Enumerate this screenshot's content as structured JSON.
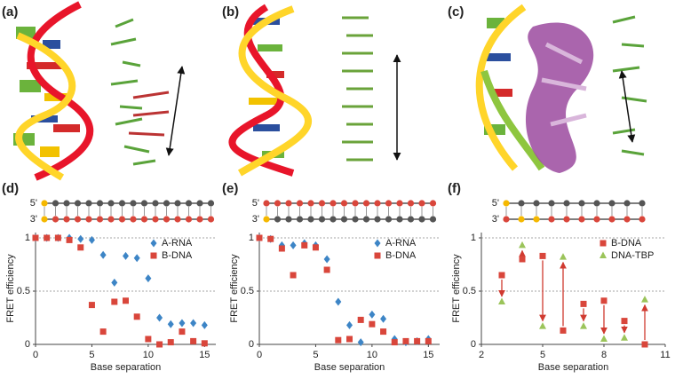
{
  "panels": [
    "(a)",
    "(b)",
    "(c)",
    "(d)",
    "(e)",
    "(f)"
  ],
  "chart_data": [
    {
      "type": "scatter",
      "x_label": "Base separation",
      "y_label": "FRET efficiency",
      "strand_labels": [
        "5'",
        "3'"
      ],
      "xlim": [
        0,
        16
      ],
      "xticks": [
        0,
        5,
        10,
        15
      ],
      "ylim": [
        0,
        1.05
      ],
      "yticks": [
        0,
        0.5,
        1
      ],
      "grid": true,
      "legend": "upper right",
      "x": [
        0,
        1,
        2,
        3,
        4,
        5,
        6,
        7,
        8,
        9,
        10,
        11,
        12,
        13,
        14,
        15
      ],
      "series": [
        {
          "name": "A-RNA",
          "color": "#3d85c6",
          "marker": "diamond",
          "values": [
            1,
            1,
            1,
            1,
            0.99,
            0.98,
            0.84,
            0.58,
            0.83,
            0.81,
            0.62,
            0.25,
            0.19,
            0.2,
            0.2,
            0.18
          ]
        },
        {
          "name": "B-DNA",
          "color": "#d9463b",
          "marker": "square",
          "values": [
            1,
            1,
            1,
            0.98,
            0.91,
            0.37,
            0.12,
            0.4,
            0.41,
            0.26,
            0.05,
            0,
            0.02,
            0.12,
            0.03,
            0.01
          ]
        }
      ]
    },
    {
      "type": "scatter",
      "x_label": "Base separation",
      "y_label": "FRET efficiency",
      "strand_labels": [
        "5'",
        "3'"
      ],
      "xlim": [
        0,
        16
      ],
      "xticks": [
        0,
        5,
        10,
        15
      ],
      "ylim": [
        0,
        1.05
      ],
      "yticks": [
        0,
        0.5,
        1
      ],
      "grid": true,
      "legend": "upper right",
      "x": [
        0,
        1,
        2,
        3,
        4,
        5,
        6,
        7,
        8,
        9,
        10,
        11,
        12,
        13,
        14,
        15
      ],
      "series": [
        {
          "name": "A-RNA",
          "color": "#3d85c6",
          "marker": "diamond",
          "values": [
            1,
            0.99,
            0.93,
            0.93,
            0.95,
            0.93,
            0.8,
            0.4,
            0.18,
            0.02,
            0.28,
            0.24,
            0.05,
            0.02,
            0.03,
            0.05
          ]
        },
        {
          "name": "B-DNA",
          "color": "#d9463b",
          "marker": "square",
          "values": [
            1,
            0.99,
            0.9,
            0.65,
            0.93,
            0.91,
            0.7,
            0.04,
            0.05,
            0.23,
            0.19,
            0.12,
            0.02,
            0.03,
            0.03,
            0.03
          ]
        }
      ]
    },
    {
      "type": "scatter",
      "x_label": "Base separation",
      "y_label": "FRET efficiency",
      "strand_labels": [
        "5'",
        "3'"
      ],
      "xlim": [
        2,
        11
      ],
      "xticks": [
        2,
        5,
        8,
        11
      ],
      "ylim": [
        0,
        1.05
      ],
      "yticks": [
        0,
        0.5,
        1
      ],
      "grid": true,
      "legend": "upper right",
      "arrows": true,
      "x": [
        3,
        4,
        5,
        6,
        7,
        8,
        9,
        10
      ],
      "series": [
        {
          "name": "B-DNA",
          "color": "#d9463b",
          "marker": "square",
          "values": [
            0.65,
            0.8,
            0.83,
            0.13,
            0.38,
            0.41,
            0.22,
            0
          ]
        },
        {
          "name": "DNA-TBP",
          "color": "#9bc45a",
          "marker": "triangle",
          "values": [
            0.4,
            0.93,
            0.17,
            0.82,
            0.17,
            0.05,
            0.06,
            0.42
          ]
        }
      ]
    }
  ]
}
